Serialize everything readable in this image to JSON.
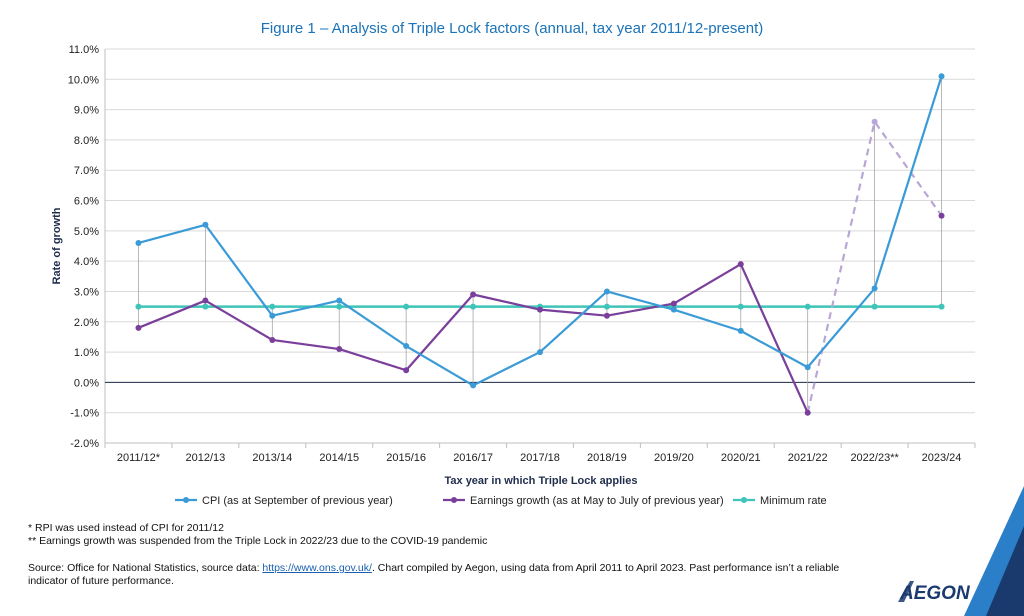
{
  "chart_data": {
    "type": "line",
    "title": "Figure 1 – Analysis of Triple Lock factors (annual, tax year 2011/12-present)",
    "xlabel": "Tax year in which Triple Lock applies",
    "ylabel": "Rate of growth",
    "categories": [
      "2011/12*",
      "2012/13",
      "2013/14",
      "2014/15",
      "2015/16",
      "2016/17",
      "2017/18",
      "2018/19",
      "2019/20",
      "2020/21",
      "2021/22",
      "2022/23**",
      "2023/24"
    ],
    "ylim": [
      -2.0,
      11.0
    ],
    "yticks": [
      "-2.0%",
      "-1.0%",
      "0.0%",
      "1.0%",
      "2.0%",
      "3.0%",
      "4.0%",
      "5.0%",
      "6.0%",
      "7.0%",
      "8.0%",
      "9.0%",
      "10.0%",
      "11.0%"
    ],
    "grid": true,
    "legend_position": "bottom",
    "series": [
      {
        "name": "CPI (as at September of previous year)",
        "color": "#3b9bd6",
        "values": [
          4.6,
          5.2,
          2.2,
          2.7,
          1.2,
          -0.1,
          1.0,
          3.0,
          2.4,
          1.7,
          0.5,
          3.1,
          10.1
        ]
      },
      {
        "name": "Earnings growth (as at May to July of previous year)",
        "color": "#7a3f9a",
        "values": [
          1.8,
          2.7,
          1.4,
          1.1,
          0.4,
          2.9,
          2.4,
          2.2,
          2.6,
          3.9,
          -1.0,
          8.6,
          5.5
        ],
        "suspended_index": 11,
        "suspended_color": "#b9a6d6"
      },
      {
        "name": "Minimum rate",
        "color": "#3ec4b8",
        "values": [
          2.5,
          2.5,
          2.5,
          2.5,
          2.5,
          2.5,
          2.5,
          2.5,
          2.5,
          2.5,
          2.5,
          2.5,
          2.5
        ]
      }
    ]
  },
  "footnotes": [
    "* RPI was used instead of CPI for 2011/12",
    "** Earnings growth was suspended from the Triple Lock in 2022/23 due to the COVID-19 pandemic"
  ],
  "source": {
    "before": "Source: Office for National Statistics, source data: ",
    "link": "https://www.ons.gov.uk/",
    "after": ". Chart compiled by Aegon, using data from April 2011 to April 2023. Past performance isn’t a reliable indicator of future performance."
  },
  "logo_text": "AEGON",
  "colors": {
    "accent_blue": "#1a73b8",
    "corner_dark": "#1a3a6e",
    "corner_light": "#2a7fc8"
  }
}
